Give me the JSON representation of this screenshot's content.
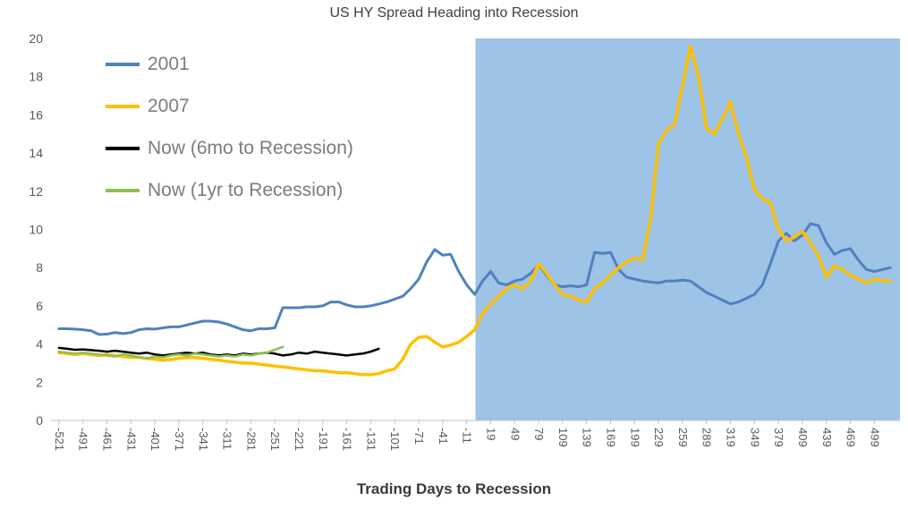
{
  "chart_data": {
    "type": "line",
    "title": "US HY Spread Heading into Recession",
    "xlabel": "Trading Days to Recession",
    "ylabel": "",
    "xlim": [
      -531,
      531
    ],
    "ylim": [
      0,
      20
    ],
    "x_ticks": [
      -521,
      -491,
      -461,
      -431,
      -401,
      -371,
      -341,
      -311,
      -281,
      -251,
      -221,
      -191,
      -161,
      -131,
      -101,
      -71,
      -41,
      -11,
      19,
      49,
      79,
      109,
      139,
      169,
      199,
      229,
      259,
      289,
      319,
      349,
      379,
      409,
      439,
      469,
      499
    ],
    "y_ticks": [
      0,
      2,
      4,
      6,
      8,
      10,
      12,
      14,
      16,
      18,
      20
    ],
    "grid": false,
    "legend_position": "top-left-inside",
    "shaded_region": {
      "x_start": 0,
      "x_end": 531,
      "color": "#9DC3E6"
    },
    "series": [
      {
        "name": "2001",
        "color": "#4F81BD",
        "x_start": -521,
        "x_step": 10,
        "values": [
          4.8,
          4.8,
          4.78,
          4.75,
          4.7,
          4.5,
          4.52,
          4.6,
          4.55,
          4.6,
          4.75,
          4.8,
          4.78,
          4.85,
          4.9,
          4.9,
          5.0,
          5.1,
          5.2,
          5.2,
          5.15,
          5.05,
          4.9,
          4.75,
          4.7,
          4.8,
          4.8,
          4.85,
          5.9,
          5.9,
          5.9,
          5.95,
          5.95,
          6.0,
          6.2,
          6.2,
          6.05,
          5.95,
          5.95,
          6.0,
          6.1,
          6.2,
          6.35,
          6.5,
          6.9,
          7.4,
          8.3,
          8.95,
          8.65,
          8.7,
          7.8,
          7.1,
          6.6,
          7.3,
          7.8,
          7.2,
          7.1,
          7.3,
          7.4,
          7.7,
          8.15,
          7.6,
          7.1,
          7.0,
          7.05,
          7.0,
          7.1,
          8.8,
          8.75,
          8.8,
          7.9,
          7.5,
          7.4,
          7.3,
          7.25,
          7.2,
          7.3,
          7.3,
          7.35,
          7.3,
          7.0,
          6.7,
          6.5,
          6.3,
          6.1,
          6.2,
          6.4,
          6.6,
          7.1,
          8.2,
          9.4,
          9.8,
          9.4,
          9.7,
          10.3,
          10.2,
          9.3,
          8.7,
          8.9,
          9.0,
          8.4,
          7.9,
          7.8,
          7.9,
          8.0
        ]
      },
      {
        "name": "2007",
        "color": "#FFC000",
        "x_start": -521,
        "x_step": 10,
        "values": [
          3.55,
          3.5,
          3.45,
          3.5,
          3.45,
          3.4,
          3.45,
          3.4,
          3.35,
          3.3,
          3.3,
          3.25,
          3.2,
          3.15,
          3.2,
          3.25,
          3.3,
          3.3,
          3.25,
          3.2,
          3.15,
          3.1,
          3.05,
          3.0,
          3.0,
          2.95,
          2.9,
          2.85,
          2.8,
          2.75,
          2.7,
          2.65,
          2.6,
          2.6,
          2.55,
          2.5,
          2.5,
          2.45,
          2.4,
          2.4,
          2.45,
          2.6,
          2.7,
          3.2,
          4.0,
          4.35,
          4.4,
          4.1,
          3.85,
          3.95,
          4.1,
          4.4,
          4.75,
          5.6,
          6.1,
          6.5,
          6.9,
          7.1,
          6.9,
          7.3,
          8.2,
          7.7,
          7.1,
          6.6,
          6.5,
          6.3,
          6.2,
          6.9,
          7.2,
          7.6,
          8.0,
          8.3,
          8.5,
          8.4,
          10.5,
          14.5,
          15.2,
          15.5,
          17.5,
          19.6,
          18.0,
          15.3,
          15.0,
          15.8,
          16.7,
          15.0,
          13.8,
          12.1,
          11.6,
          11.4,
          10.0,
          9.4,
          9.6,
          9.9,
          9.3,
          8.6,
          7.5,
          8.1,
          7.9,
          7.6,
          7.4,
          7.2,
          7.4,
          7.3,
          7.3
        ]
      },
      {
        "name": "Now (6mo to Recession)",
        "color": "#000000",
        "x_start": -521,
        "x_step": 10,
        "values": [
          3.8,
          3.75,
          3.7,
          3.72,
          3.68,
          3.65,
          3.6,
          3.65,
          3.6,
          3.55,
          3.5,
          3.55,
          3.45,
          3.4,
          3.45,
          3.5,
          3.55,
          3.5,
          3.55,
          3.45,
          3.4,
          3.45,
          3.4,
          3.5,
          3.45,
          3.5,
          3.55,
          3.5,
          3.4,
          3.45,
          3.55,
          3.5,
          3.6,
          3.55,
          3.5,
          3.45,
          3.4,
          3.45,
          3.5,
          3.6,
          3.75
        ]
      },
      {
        "name": "Now (1yr to Recession)",
        "color": "#8DC04F",
        "x_start": -521,
        "x_step": 10,
        "values": [
          3.6,
          3.55,
          3.5,
          3.55,
          3.5,
          3.45,
          3.4,
          3.35,
          3.45,
          3.4,
          3.3,
          3.25,
          3.35,
          3.3,
          3.4,
          3.45,
          3.4,
          3.5,
          3.45,
          3.4,
          3.35,
          3.4,
          3.35,
          3.45,
          3.4,
          3.5,
          3.55,
          3.7,
          3.85
        ]
      }
    ]
  }
}
